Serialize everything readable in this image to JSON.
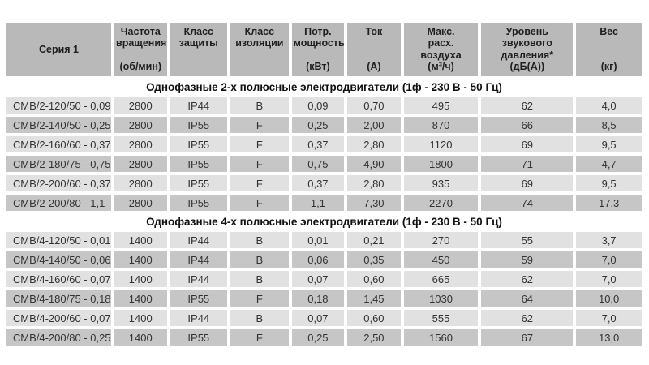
{
  "colors": {
    "header_bg": "#b9b9b9",
    "row_light_bg": "#e1e1e1",
    "row_dark_bg": "#c6c6c6",
    "section_bg": "#ffffff",
    "text": "#333333"
  },
  "table": {
    "headers": [
      {
        "title": "Серия 1",
        "unit": ""
      },
      {
        "title": "Частота\nвращения",
        "unit": "(об/мин)"
      },
      {
        "title": "Класс\nзащиты",
        "unit": ""
      },
      {
        "title": "Класс\nизоляции",
        "unit": ""
      },
      {
        "title": "Потр.\nмощность",
        "unit": "(кВт)"
      },
      {
        "title": "Ток",
        "unit": "(А)"
      },
      {
        "title": "Макс.\nрасх.\nвоздуха",
        "unit": "(м³/ч)"
      },
      {
        "title": "Уровень звукового\nдавления*",
        "unit": "(дБ(А))"
      },
      {
        "title": "Вес",
        "unit": "(кг)"
      }
    ],
    "sections": [
      {
        "title": "Однофазные 2-х полюсные электродвигатели (1ф - 230 В - 50 Гц)",
        "rows": [
          [
            "СМВ/2-120/50 - 0,09",
            "2800",
            "IP44",
            "B",
            "0,09",
            "0,70",
            "495",
            "62",
            "4,0"
          ],
          [
            "СМВ/2-140/50 - 0,25",
            "2800",
            "IP55",
            "F",
            "0,25",
            "2,00",
            "870",
            "66",
            "8,5"
          ],
          [
            "СМВ/2-160/60 - 0,37",
            "2800",
            "IP55",
            "F",
            "0,37",
            "2,80",
            "1120",
            "69",
            "9,5"
          ],
          [
            "СМВ/2-180/75 - 0,75",
            "2800",
            "IP55",
            "F",
            "0,75",
            "4,90",
            "1800",
            "71",
            "4,7"
          ],
          [
            "СМВ/2-200/60 - 0,37",
            "2800",
            "IP55",
            "F",
            "0,37",
            "2,80",
            "935",
            "69",
            "9,5"
          ],
          [
            "СМВ/2-200/80 - 1,1",
            "2800",
            "IP55",
            "F",
            "1,1",
            "7,30",
            "2270",
            "74",
            "17,3"
          ]
        ]
      },
      {
        "title": "Однофазные 4-х полюсные электродвигатели (1ф - 230 В - 50 Гц)",
        "rows": [
          [
            "СМВ/4-120/50 - 0,01",
            "1400",
            "IP44",
            "B",
            "0,01",
            "0,21",
            "270",
            "55",
            "3,7"
          ],
          [
            "СМВ/4-140/50 - 0,06",
            "1400",
            "IP44",
            "B",
            "0,06",
            "0,35",
            "450",
            "59",
            "7,0"
          ],
          [
            "СМВ/4-160/60 - 0,07",
            "1400",
            "IP44",
            "B",
            "0,07",
            "0,60",
            "665",
            "62",
            "7,0"
          ],
          [
            "СМВ/4-180/75 - 0,18",
            "1400",
            "IP55",
            "F",
            "0,18",
            "1,45",
            "1030",
            "64",
            "10,0"
          ],
          [
            "СМВ/4-200/60 - 0,07",
            "1400",
            "IP44",
            "B",
            "0,07",
            "0,60",
            "555",
            "62",
            "7,0"
          ],
          [
            "СМВ/4-200/80 - 0,25",
            "1400",
            "IP55",
            "F",
            "0,25",
            "2,50",
            "1560",
            "67",
            "13,0"
          ]
        ]
      }
    ]
  }
}
